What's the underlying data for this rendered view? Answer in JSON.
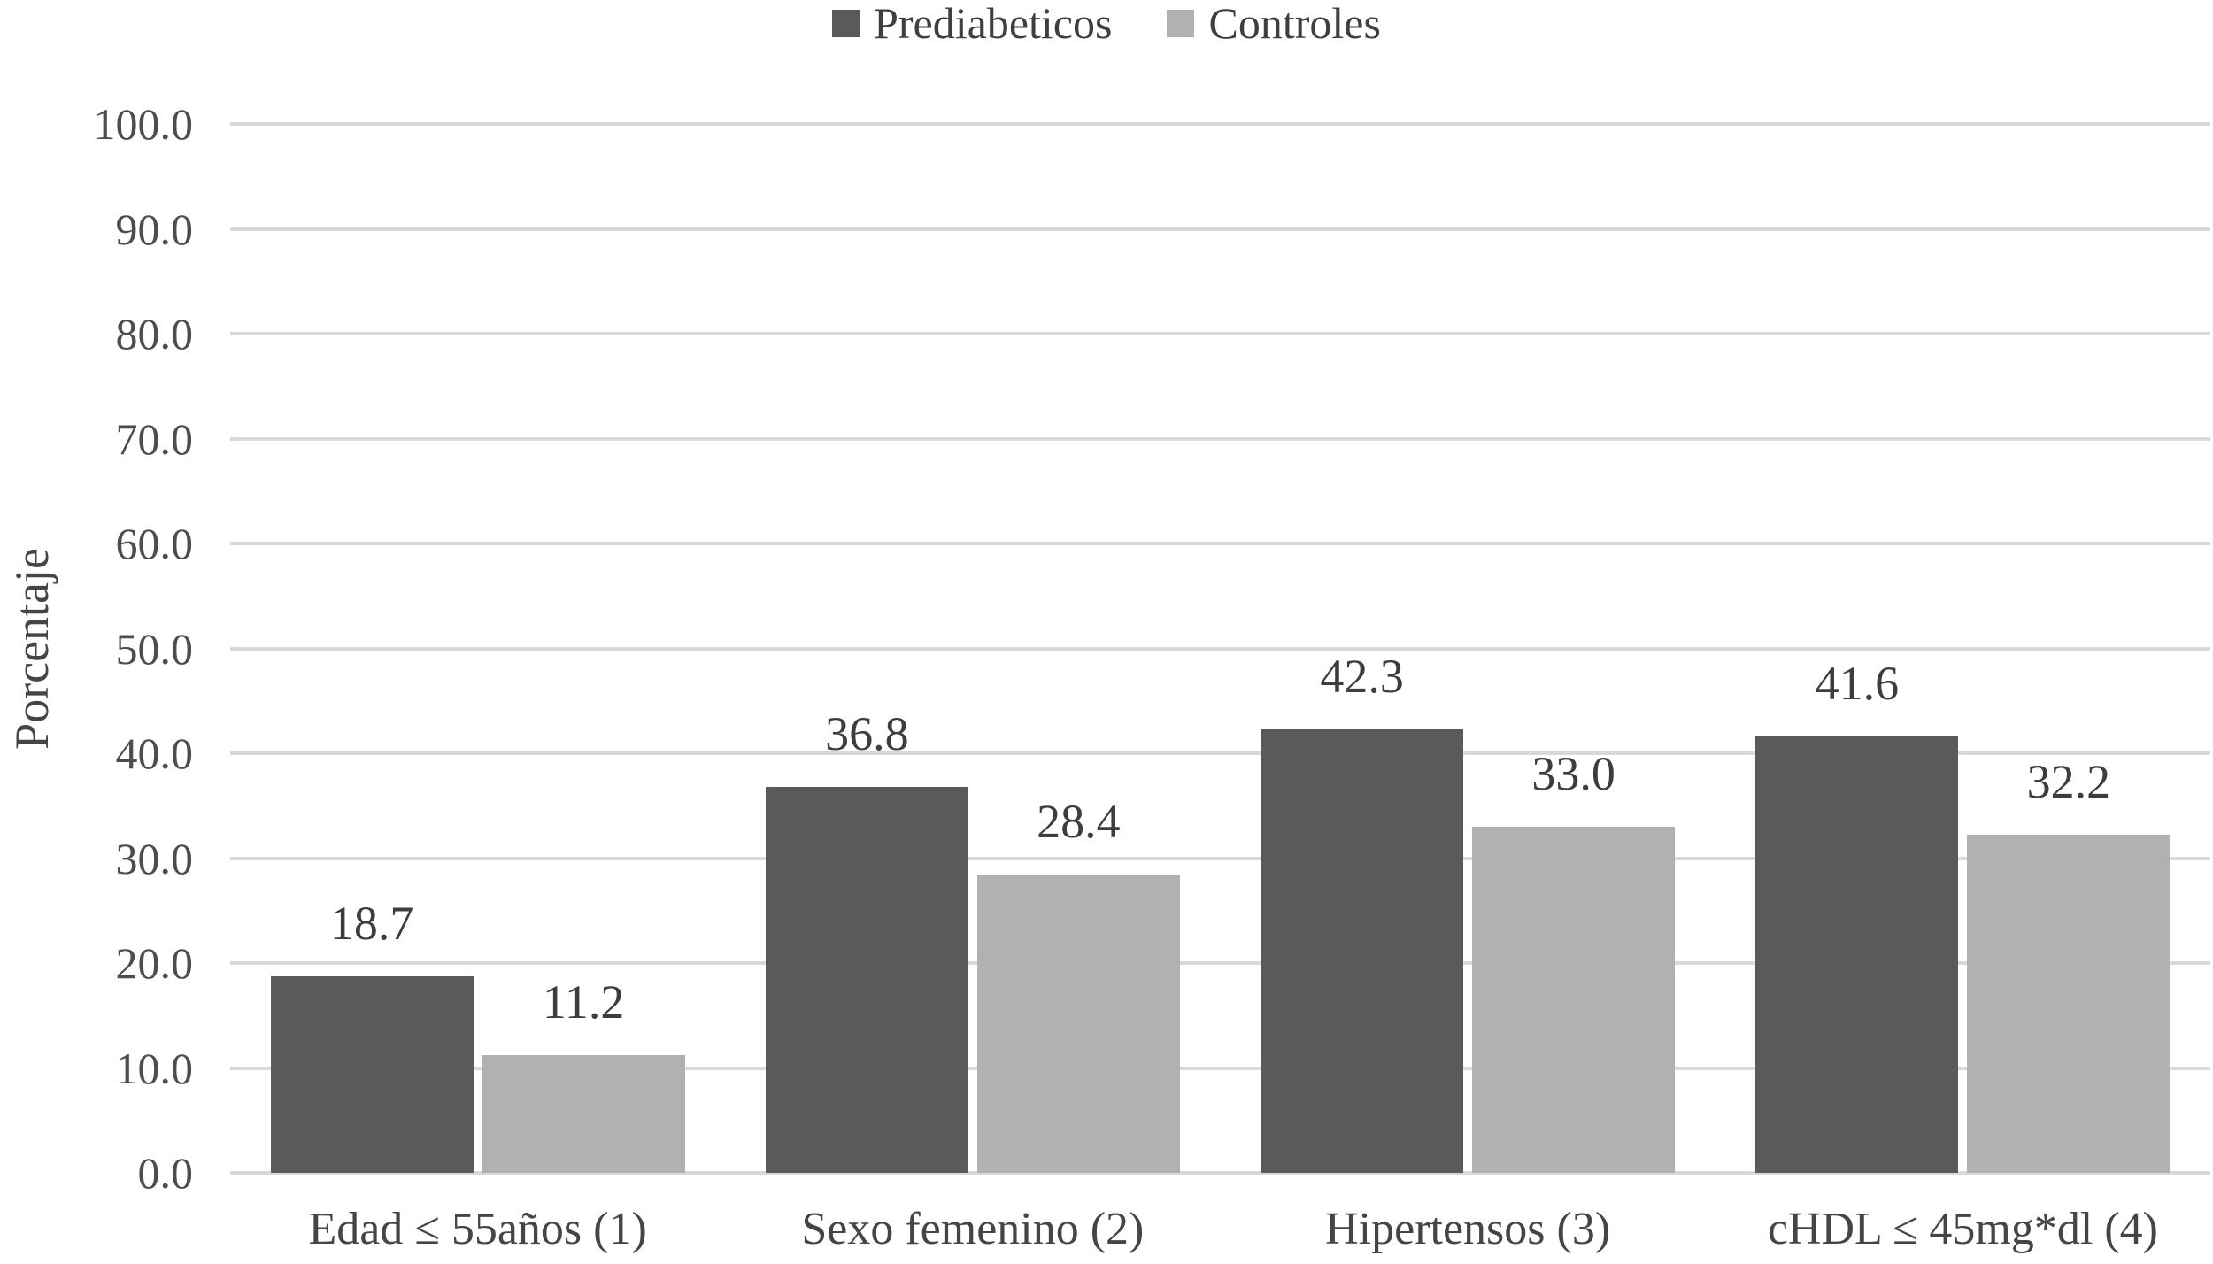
{
  "chart_data": {
    "type": "bar",
    "title": "",
    "categories": [
      "Edad ≤ 55años (1)",
      "Sexo femenino (2)",
      "Hipertensos (3)",
      "cHDL ≤ 45mg*dl (4)"
    ],
    "series": [
      {
        "name": "Prediabeticos",
        "color": "#5a5a5a",
        "values": [
          18.7,
          36.8,
          42.3,
          41.6
        ]
      },
      {
        "name": "Controles",
        "color": "#b1b1b1",
        "values": [
          11.2,
          28.4,
          33.0,
          32.2
        ]
      }
    ],
    "xlabel": "",
    "ylabel": "Porcentaje",
    "ylim": [
      0,
      100
    ],
    "ytick_step": 10,
    "ytick_labels": [
      "0.0",
      "10.0",
      "20.0",
      "30.0",
      "40.0",
      "50.0",
      "60.0",
      "70.0",
      "80.0",
      "90.0",
      "100.0"
    ],
    "value_label_decimals": 1,
    "grid": true,
    "legend_position": "top",
    "colors": {
      "gridline": "#d9d9d9",
      "baseline": "#d9d9d9",
      "value_label_text": "#3d3d3d",
      "tick_text": "#4d4d4d",
      "category_text": "#454545",
      "legend_text": "#3f3f3f",
      "background": "#ffffff"
    }
  }
}
